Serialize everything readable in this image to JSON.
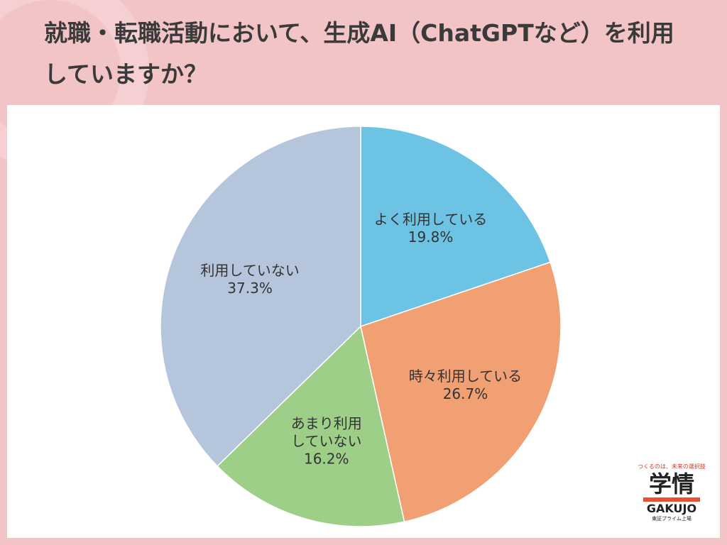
{
  "chart_data": {
    "type": "pie",
    "title": "就職・転職活動において、生成AI（ChatGPTなど）を利用していますか？",
    "categories": [
      "よく利用している",
      "時々利用している",
      "あまり利用していない",
      "利用していない"
    ],
    "values": [
      19.8,
      26.7,
      16.2,
      37.3
    ],
    "value_labels": [
      "19.8%",
      "26.7%",
      "16.2%",
      "37.3%"
    ],
    "colors": [
      "#6cc3e3",
      "#f0a072",
      "#9dcf88",
      "#b5c6dc"
    ]
  },
  "logo": {
    "tagline": "つくるのは、未来の選択肢",
    "name": "学情",
    "latin": "GAKUJO",
    "note": "東証プライム上場"
  }
}
